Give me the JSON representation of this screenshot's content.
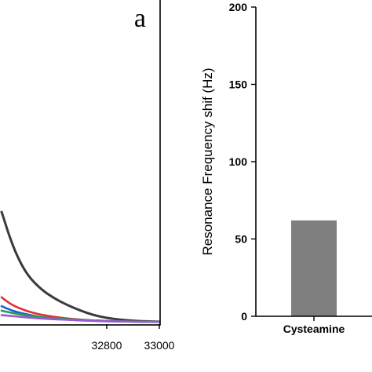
{
  "chart_data": [
    {
      "type": "line",
      "panel_label": "a",
      "xlim": [
        32400,
        33000
      ],
      "x_ticks": [
        32800,
        33000
      ],
      "series": [
        {
          "color": "#3a3a3a",
          "x": [
            32400,
            32410,
            32430,
            32460,
            32500,
            32550,
            32600,
            32650,
            32700,
            32750,
            32800,
            32850,
            32900,
            32950,
            33000
          ],
          "y": [
            1.0,
            0.93,
            0.78,
            0.6,
            0.43,
            0.31,
            0.23,
            0.17,
            0.12,
            0.08,
            0.055,
            0.04,
            0.03,
            0.025,
            0.022
          ]
        },
        {
          "color": "#e03030",
          "x": [
            32400,
            32410,
            32440,
            32480,
            32520,
            32560,
            32600,
            32650,
            32700,
            32750,
            32800,
            32850,
            32900,
            33000
          ],
          "y": [
            0.24,
            0.22,
            0.17,
            0.13,
            0.1,
            0.08,
            0.065,
            0.05,
            0.04,
            0.033,
            0.028,
            0.025,
            0.023,
            0.021
          ]
        },
        {
          "color": "#2060d0",
          "x": [
            32400,
            32410,
            32440,
            32480,
            32520,
            32560,
            32600,
            32650,
            32700,
            32800,
            32900,
            33000
          ],
          "y": [
            0.16,
            0.15,
            0.12,
            0.095,
            0.075,
            0.06,
            0.05,
            0.04,
            0.033,
            0.026,
            0.022,
            0.02
          ]
        },
        {
          "color": "#2a9a5a",
          "x": [
            32400,
            32420,
            32460,
            32500,
            32550,
            32600,
            32650,
            32700,
            32800,
            32900,
            33000
          ],
          "y": [
            0.12,
            0.11,
            0.09,
            0.075,
            0.062,
            0.052,
            0.044,
            0.037,
            0.028,
            0.023,
            0.02
          ]
        },
        {
          "color": "#9a5ad0",
          "x": [
            32400,
            32430,
            32470,
            32520,
            32570,
            32620,
            32680,
            32740,
            32800,
            32900,
            33000
          ],
          "y": [
            0.08,
            0.075,
            0.065,
            0.055,
            0.047,
            0.041,
            0.036,
            0.031,
            0.027,
            0.022,
            0.019
          ]
        }
      ]
    },
    {
      "type": "bar",
      "categories": [
        "Cysteamine"
      ],
      "values": [
        62
      ],
      "ylabel": "Resonance Frequency shif (Hz)",
      "ylim": [
        0,
        200
      ],
      "y_ticks": [
        0,
        50,
        100,
        150,
        200
      ],
      "bar_color": "#7f7f7f"
    }
  ]
}
